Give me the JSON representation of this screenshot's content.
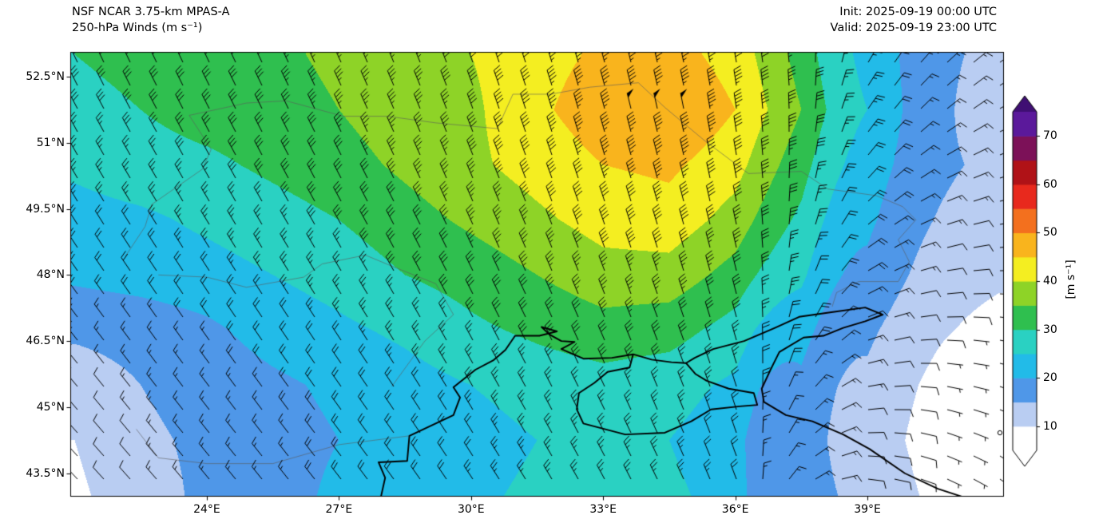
{
  "figure": {
    "title_line1": "NSF NCAR 3.75-km MPAS-A",
    "title_line2": "250-hPa Winds (m s⁻¹)",
    "init_label": "Init: 2025-09-19 00:00 UTC",
    "valid_label": "Valid: 2025-09-19 23:00 UTC"
  },
  "chart_data": {
    "type": "heatmap",
    "title": "NSF NCAR 3.75-km MPAS-A 250-hPa Winds (m s⁻¹)",
    "field": "250-hPa wind speed with wind barbs",
    "units": "m s⁻¹",
    "init_time": "2025-09-19 00:00 UTC",
    "valid_time": "2025-09-19 23:00 UTC",
    "extent": {
      "lon_min": 20.9,
      "lon_max": 42.1,
      "lat_min": 42.97,
      "lat_max": 53.06
    },
    "grid_lons": [
      21,
      22.5,
      24,
      25.5,
      27,
      28.5,
      30,
      31.5,
      33,
      34.5,
      36,
      37.5,
      39,
      40.5,
      42
    ],
    "grid_lats": [
      53,
      51.75,
      50.5,
      49.25,
      48,
      46.75,
      45.5,
      44.25,
      43
    ],
    "speed": [
      [
        30,
        31,
        32,
        34,
        36,
        38,
        40,
        43,
        46,
        47,
        43,
        33,
        24,
        16,
        14
      ],
      [
        29,
        30,
        32,
        33,
        35,
        38,
        39,
        44,
        48,
        50,
        45,
        35,
        25,
        16,
        13
      ],
      [
        26,
        28,
        29,
        31,
        33,
        36,
        39,
        42,
        45,
        46,
        42,
        32,
        23,
        16,
        14
      ],
      [
        23,
        24,
        26,
        28,
        30,
        33,
        36,
        39,
        42,
        43,
        38,
        29,
        21,
        15,
        13
      ],
      [
        21,
        22,
        23,
        25,
        27,
        30,
        32,
        35,
        38,
        38,
        33,
        26,
        19,
        13,
        11
      ],
      [
        16,
        17,
        19,
        22,
        24,
        26,
        29,
        31,
        33,
        32,
        28,
        22,
        16,
        11,
        8
      ],
      [
        12,
        15,
        17,
        19,
        21,
        23,
        25,
        27,
        28,
        27,
        24,
        19,
        14,
        9,
        3
      ],
      [
        10,
        14,
        16,
        18,
        20,
        22,
        23,
        25,
        26,
        25,
        22,
        18,
        13,
        8,
        2
      ],
      [
        9,
        13,
        16,
        18,
        21,
        23,
        24,
        26,
        27,
        26,
        23,
        19,
        14,
        9,
        6
      ]
    ],
    "dir_from": [
      [
        335,
        335,
        335,
        335,
        336,
        338,
        340,
        342,
        345,
        348,
        350,
        355,
        30,
        45,
        55
      ],
      [
        332,
        332,
        333,
        334,
        335,
        337,
        340,
        342,
        345,
        348,
        352,
        0,
        35,
        50,
        60
      ],
      [
        330,
        330,
        331,
        332,
        333,
        335,
        338,
        340,
        343,
        346,
        350,
        5,
        40,
        60,
        70
      ],
      [
        328,
        328,
        329,
        330,
        331,
        333,
        336,
        338,
        341,
        344,
        348,
        10,
        50,
        70,
        80
      ],
      [
        325,
        326,
        327,
        328,
        329,
        331,
        334,
        336,
        339,
        342,
        346,
        15,
        60,
        80,
        90
      ],
      [
        322,
        324,
        325,
        326,
        327,
        329,
        332,
        334,
        337,
        340,
        344,
        25,
        70,
        90,
        100
      ],
      [
        320,
        322,
        323,
        324,
        325,
        327,
        330,
        332,
        335,
        338,
        342,
        35,
        80,
        100,
        110
      ],
      [
        318,
        320,
        321,
        322,
        323,
        325,
        328,
        330,
        333,
        336,
        340,
        45,
        90,
        110,
        120
      ],
      [
        316,
        318,
        320,
        321,
        322,
        324,
        326,
        328,
        331,
        334,
        338,
        55,
        100,
        115,
        125
      ]
    ],
    "levels": [
      5,
      10,
      15,
      20,
      25,
      30,
      35,
      40,
      45,
      50,
      55,
      60,
      65,
      70,
      75
    ],
    "colors": [
      "#ffffff",
      "#b9cdf2",
      "#4f97e8",
      "#22bbe8",
      "#2ad1c2",
      "#2fbf4f",
      "#8ed327",
      "#f4ee21",
      "#f9b41d",
      "#f3701e",
      "#e8291d",
      "#b01217",
      "#7c1158",
      "#5b199b"
    ],
    "under_color": "#ffffff",
    "over_color": "#3f0f73",
    "colorbar": {
      "ticks": [
        10,
        20,
        30,
        40,
        50,
        60,
        70
      ],
      "label": "[m s⁻¹]"
    },
    "x_ticks": [
      {
        "value": 24,
        "label": "24°E"
      },
      {
        "value": 27,
        "label": "27°E"
      },
      {
        "value": 30,
        "label": "30°E"
      },
      {
        "value": 33,
        "label": "33°E"
      },
      {
        "value": 36,
        "label": "36°E"
      },
      {
        "value": 39,
        "label": "39°E"
      }
    ],
    "y_ticks": [
      {
        "value": 52.5,
        "label": "52.5°N"
      },
      {
        "value": 51,
        "label": "51°N"
      },
      {
        "value": 49.5,
        "label": "49.5°N"
      },
      {
        "value": 48,
        "label": "48°N"
      },
      {
        "value": 46.5,
        "label": "46.5°N"
      },
      {
        "value": 45,
        "label": "45°N"
      },
      {
        "value": 43.5,
        "label": "43.5°N"
      }
    ],
    "coastlines": [
      [
        [
          27.95,
          42.95
        ],
        [
          28.05,
          43.4
        ],
        [
          27.9,
          43.75
        ],
        [
          28.55,
          43.78
        ],
        [
          28.6,
          44.35
        ],
        [
          29.6,
          44.82
        ],
        [
          29.75,
          45.22
        ],
        [
          29.6,
          45.45
        ],
        [
          30.1,
          45.85
        ],
        [
          30.5,
          46.06
        ],
        [
          30.78,
          46.3
        ],
        [
          31.0,
          46.62
        ],
        [
          31.55,
          46.62
        ],
        [
          31.95,
          46.72
        ],
        [
          31.6,
          46.82
        ],
        [
          31.78,
          46.65
        ],
        [
          32.05,
          46.5
        ],
        [
          32.35,
          46.48
        ],
        [
          32.05,
          46.32
        ],
        [
          32.55,
          46.1
        ],
        [
          33.2,
          46.12
        ],
        [
          33.68,
          46.2
        ],
        [
          34.1,
          46.08
        ],
        [
          34.55,
          46.02
        ],
        [
          34.88,
          46.0
        ],
        [
          35.08,
          46.12
        ],
        [
          35.5,
          46.32
        ],
        [
          36.2,
          46.5
        ],
        [
          36.9,
          46.8
        ],
        [
          37.45,
          47.05
        ],
        [
          38.15,
          47.15
        ],
        [
          38.95,
          47.26
        ],
        [
          39.35,
          47.1
        ],
        [
          38.95,
          46.95
        ],
        [
          38.45,
          46.8
        ],
        [
          38.0,
          46.62
        ],
        [
          37.55,
          46.58
        ],
        [
          37.0,
          46.25
        ],
        [
          36.8,
          45.85
        ],
        [
          36.6,
          45.42
        ],
        [
          36.65,
          45.12
        ],
        [
          37.15,
          44.82
        ],
        [
          37.75,
          44.68
        ],
        [
          38.45,
          44.38
        ],
        [
          39.05,
          44.05
        ],
        [
          39.85,
          43.5
        ],
        [
          40.6,
          43.15
        ],
        [
          41.3,
          42.92
        ]
      ],
      [
        [
          33.68,
          46.2
        ],
        [
          33.6,
          45.9
        ],
        [
          33.1,
          45.8
        ],
        [
          32.8,
          45.55
        ],
        [
          32.45,
          45.32
        ],
        [
          32.4,
          44.95
        ],
        [
          32.55,
          44.63
        ],
        [
          33.5,
          44.38
        ],
        [
          34.4,
          44.42
        ],
        [
          35.0,
          44.68
        ],
        [
          35.45,
          44.95
        ],
        [
          36.1,
          45.02
        ],
        [
          36.5,
          45.05
        ],
        [
          36.42,
          45.32
        ],
        [
          35.85,
          45.42
        ],
        [
          35.35,
          45.6
        ],
        [
          35.1,
          45.75
        ],
        [
          34.88,
          46.0
        ]
      ]
    ],
    "borders": [
      [
        [
          23.6,
          51.62
        ],
        [
          24.9,
          51.9
        ],
        [
          25.8,
          51.95
        ],
        [
          27.1,
          51.6
        ],
        [
          28.1,
          51.6
        ],
        [
          29.2,
          51.45
        ],
        [
          30.6,
          51.32
        ],
        [
          30.95,
          52.1
        ],
        [
          31.8,
          52.1
        ],
        [
          32.7,
          52.26
        ],
        [
          33.8,
          52.36
        ],
        [
          34.4,
          51.8
        ],
        [
          35.3,
          51.05
        ],
        [
          36.3,
          50.3
        ],
        [
          37.5,
          50.35
        ],
        [
          38.1,
          49.95
        ],
        [
          39.2,
          49.8
        ],
        [
          39.8,
          49.55
        ],
        [
          40.1,
          49.25
        ],
        [
          39.7,
          48.8
        ],
        [
          39.95,
          48.3
        ],
        [
          39.7,
          47.85
        ],
        [
          38.8,
          47.85
        ],
        [
          38.3,
          47.6
        ],
        [
          38.2,
          47.28
        ]
      ],
      [
        [
          22.9,
          48.0
        ],
        [
          24.0,
          47.95
        ],
        [
          24.9,
          47.72
        ],
        [
          26.2,
          47.95
        ],
        [
          26.62,
          48.25
        ],
        [
          27.6,
          48.45
        ],
        [
          28.2,
          48.2
        ],
        [
          29.2,
          47.8
        ],
        [
          29.6,
          47.1
        ],
        [
          28.95,
          46.5
        ],
        [
          28.2,
          45.47
        ]
      ],
      [
        [
          28.6,
          44.35
        ],
        [
          27.0,
          44.15
        ],
        [
          25.5,
          43.72
        ],
        [
          24.0,
          43.72
        ],
        [
          22.9,
          43.85
        ],
        [
          22.4,
          44.5
        ]
      ],
      [
        [
          22.15,
          48.42
        ],
        [
          22.6,
          49.1
        ],
        [
          22.75,
          49.6
        ],
        [
          23.9,
          50.4
        ],
        [
          24.1,
          50.85
        ],
        [
          23.6,
          51.62
        ]
      ]
    ]
  }
}
